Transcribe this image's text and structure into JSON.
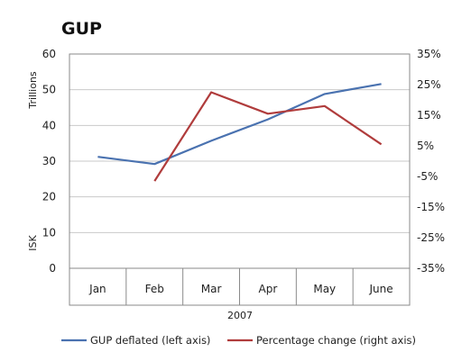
{
  "chart_data": {
    "type": "line",
    "title": "GUP",
    "categories": [
      "Jan",
      "Feb",
      "Mar",
      "Apr",
      "May",
      "June"
    ],
    "x_group_label": "2007",
    "left_axis": {
      "label_top": "Trillions",
      "label_bottom": "ISK",
      "ylim": [
        0,
        60
      ],
      "ticks": [
        "0",
        "10",
        "20",
        "30",
        "40",
        "50",
        "60"
      ]
    },
    "right_axis": {
      "ylim": [
        -35,
        35
      ],
      "ticks": [
        "-35%",
        "-25%",
        "-15%",
        "-5%",
        "5%",
        "15%",
        "25%",
        "35%"
      ]
    },
    "grid": true,
    "legend_position": "bottom",
    "series": [
      {
        "name": "GUP deflated (left axis)",
        "axis": "left",
        "color": "#4a72b0",
        "values": [
          31.2,
          29.2,
          35.7,
          41.7,
          48.8,
          51.6
        ]
      },
      {
        "name": "Percentage change (right axis)",
        "axis": "right",
        "color": "#b03c3c",
        "values": [
          null,
          -6.5,
          22.5,
          15.5,
          18.0,
          5.5
        ]
      }
    ]
  }
}
